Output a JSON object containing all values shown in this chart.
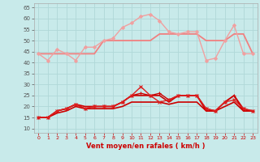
{
  "bg_color": "#c8eaea",
  "grid_color": "#b0d8d8",
  "xlabel": "Vent moyen/en rafales ( km/h )",
  "ylim": [
    8,
    67
  ],
  "xlim": [
    -0.5,
    23.5
  ],
  "yticks": [
    10,
    15,
    20,
    25,
    30,
    35,
    40,
    45,
    50,
    55,
    60,
    65
  ],
  "xticks": [
    0,
    1,
    2,
    3,
    4,
    5,
    6,
    7,
    8,
    9,
    10,
    11,
    12,
    13,
    14,
    15,
    16,
    17,
    18,
    19,
    20,
    21,
    22,
    23
  ],
  "series": [
    {
      "y": [
        44,
        41,
        46,
        44,
        41,
        47,
        47,
        50,
        51,
        56,
        58,
        61,
        62,
        59,
        54,
        53,
        54,
        54,
        41,
        42,
        50,
        57,
        44,
        44
      ],
      "color": "#f0a0a0",
      "lw": 1.0,
      "marker": "D",
      "ms": 2.0,
      "zorder": 3,
      "linestyle": "solid"
    },
    {
      "y": [
        44,
        44,
        44,
        44,
        44,
        44,
        44,
        50,
        50,
        50,
        50,
        50,
        50,
        53,
        53,
        53,
        53,
        53,
        50,
        50,
        50,
        53,
        53,
        44
      ],
      "color": "#f08080",
      "lw": 1.3,
      "marker": null,
      "ms": 0,
      "zorder": 2,
      "linestyle": "solid"
    },
    {
      "y": [
        15,
        15,
        18,
        19,
        21,
        19,
        20,
        20,
        20,
        22,
        25,
        26,
        25,
        26,
        23,
        25,
        25,
        25,
        19,
        18,
        22,
        25,
        19,
        18
      ],
      "color": "#cc0000",
      "lw": 1.0,
      "marker": "+",
      "ms": 3.5,
      "zorder": 4,
      "linestyle": "solid"
    },
    {
      "y": [
        15,
        15,
        18,
        19,
        21,
        19,
        20,
        20,
        20,
        22,
        25,
        29,
        25,
        22,
        23,
        25,
        25,
        25,
        19,
        18,
        22,
        23,
        19,
        18
      ],
      "color": "#dd2020",
      "lw": 1.0,
      "marker": "x",
      "ms": 2.5,
      "zorder": 4,
      "linestyle": "solid"
    },
    {
      "y": [
        15,
        15,
        18,
        19,
        21,
        20,
        20,
        20,
        20,
        22,
        25,
        25,
        25,
        25,
        22,
        25,
        25,
        25,
        18,
        18,
        22,
        25,
        18,
        18
      ],
      "color": "#cc0000",
      "lw": 1.2,
      "marker": null,
      "ms": 0,
      "zorder": 3,
      "linestyle": "solid"
    },
    {
      "y": [
        15,
        15,
        17,
        18,
        20,
        19,
        19,
        19,
        19,
        20,
        22,
        22,
        22,
        22,
        21,
        22,
        22,
        22,
        18,
        18,
        20,
        22,
        18,
        18
      ],
      "color": "#cc0000",
      "lw": 1.2,
      "marker": null,
      "ms": 0,
      "zorder": 3,
      "linestyle": "solid"
    },
    {
      "y": [
        5,
        5,
        5,
        5,
        5,
        5,
        5,
        5,
        5,
        5,
        5,
        5,
        5,
        5,
        5,
        5,
        5,
        5,
        5,
        5,
        5,
        5,
        5,
        5
      ],
      "color": "#cc4444",
      "lw": 0.7,
      "marker": 4,
      "ms": 2.5,
      "zorder": 2,
      "linestyle": "dotted"
    }
  ]
}
